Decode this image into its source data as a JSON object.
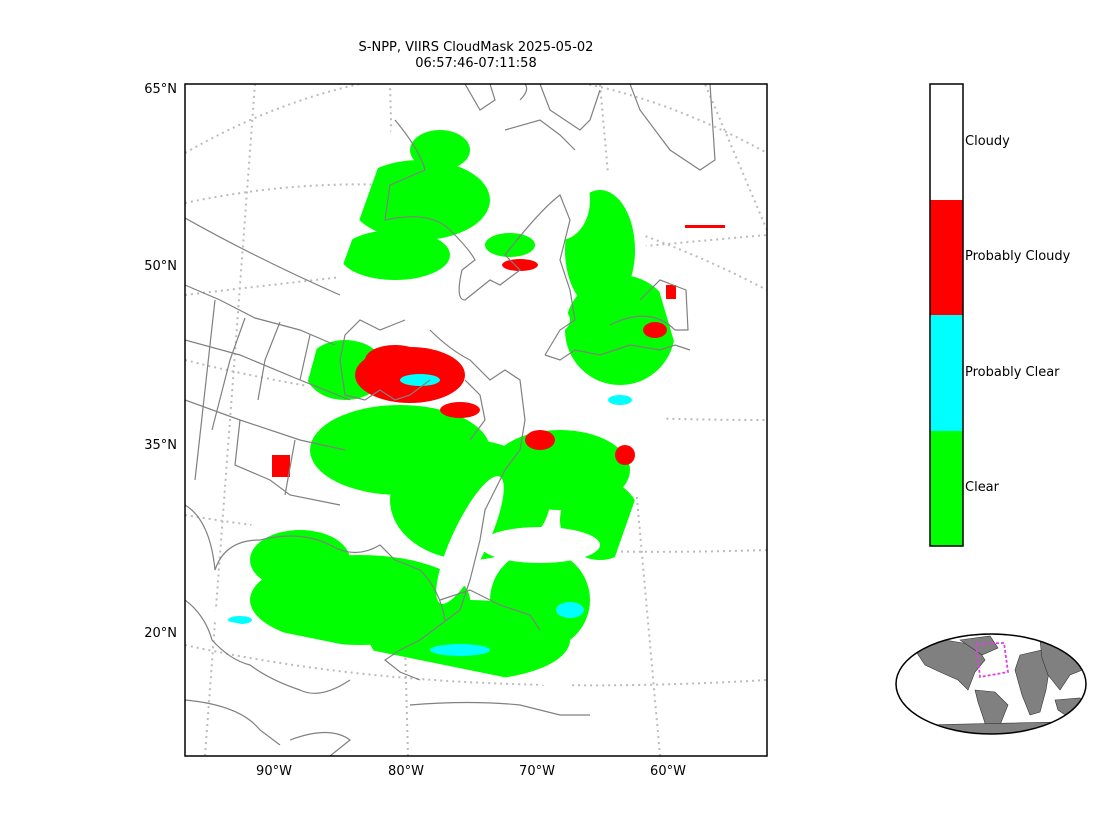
{
  "title_line1": "S-NPP, VIIRS CloudMask 2025-05-02",
  "title_line2": "06:57:46-07:11:58",
  "lat_ticks": [
    "65°N",
    "50°N",
    "35°N",
    "20°N"
  ],
  "lon_ticks": [
    "90°W",
    "80°W",
    "70°W",
    "60°W"
  ],
  "colorbar": {
    "categories": [
      {
        "label": "Cloudy",
        "color": "#ffffff"
      },
      {
        "label": "Probably Cloudy",
        "color": "#ff0000"
      },
      {
        "label": "Probably Clear",
        "color": "#00ffff"
      },
      {
        "label": "Clear",
        "color": "#00ff00"
      }
    ]
  },
  "colors": {
    "clear": "#00ff00",
    "probably_clear": "#00ffff",
    "probably_cloudy": "#ff0000",
    "coastline": "#808080",
    "graticule": "#bbbbbb",
    "inset_land": "#808080",
    "inset_box": "#e040e0"
  }
}
